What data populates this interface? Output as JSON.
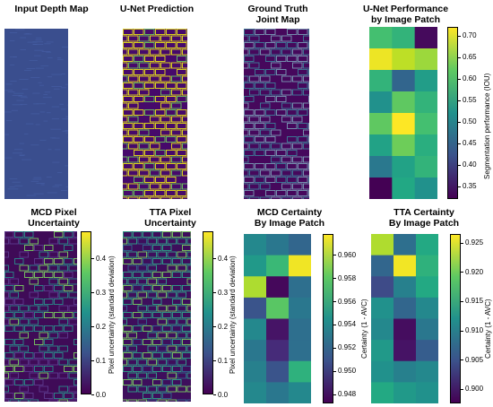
{
  "panels": [
    {
      "id": "depth",
      "title": [
        "Input Depth Map"
      ]
    },
    {
      "id": "unet",
      "title": [
        "U-Net Prediction"
      ]
    },
    {
      "id": "gt",
      "title": [
        "Ground Truth",
        "Joint Map"
      ]
    },
    {
      "id": "unetperf",
      "title": [
        "U-Net Performance",
        "by Image Patch"
      ]
    },
    {
      "id": "mcdpix",
      "title": [
        "MCD Pixel",
        "Uncertainty"
      ]
    },
    {
      "id": "ttapix",
      "title": [
        "TTA Pixel",
        "Uncertainty"
      ]
    },
    {
      "id": "mcdcert",
      "title": [
        "MCD Certainty",
        "By Image Patch"
      ]
    },
    {
      "id": "ttacert",
      "title": [
        "TTA Certainty",
        "By Image Patch"
      ]
    }
  ],
  "colors": {
    "viridis_low": "#440154",
    "viridis_mid": "#21918c",
    "viridis_high": "#fde725",
    "depth_blue": "#3a4e8e"
  },
  "colorbars": [
    {
      "id": "cb-unetperf",
      "label": "Segmentation performance (IOU)",
      "ticks": [
        "0.35",
        "0.40",
        "0.45",
        "0.50",
        "0.55",
        "0.60",
        "0.65",
        "0.70"
      ],
      "range": [
        0.32,
        0.72
      ]
    },
    {
      "id": "cb-mcdpix",
      "label": "Pixel uncertainty (standard deviation)",
      "ticks": [
        "0.0",
        "0.1",
        "0.2",
        "0.3",
        "0.4"
      ],
      "range": [
        0.0,
        0.48
      ]
    },
    {
      "id": "cb-ttapix",
      "label": "Pixel uncertainty (standard deviation)",
      "ticks": [
        "0.0",
        "0.1",
        "0.2",
        "0.3",
        "0.4"
      ],
      "range": [
        0.0,
        0.48
      ]
    },
    {
      "id": "cb-mcdcert",
      "label": "Certainty (1 - AVC)",
      "ticks": [
        "0.948",
        "0.950",
        "0.952",
        "0.954",
        "0.956",
        "0.958",
        "0.960"
      ],
      "range": [
        0.9472,
        0.9618
      ]
    },
    {
      "id": "cb-ttacert",
      "label": "Certainty (1 - AVC)",
      "ticks": [
        "0.900",
        "0.905",
        "0.910",
        "0.915",
        "0.920",
        "0.925"
      ],
      "range": [
        0.8975,
        0.9265
      ]
    }
  ],
  "chart_data": [
    {
      "type": "heatmap",
      "title": "U-Net Performance by Image Patch",
      "colorbar_label": "Segmentation performance (IOU)",
      "colormap": "viridis",
      "rows": 8,
      "cols": 3,
      "values": [
        [
          0.6,
          0.58,
          0.33
        ],
        [
          0.71,
          0.68,
          0.66
        ],
        [
          0.58,
          0.45,
          0.54
        ],
        [
          0.52,
          0.62,
          0.58
        ],
        [
          0.62,
          0.72,
          0.6
        ],
        [
          0.55,
          0.63,
          0.57
        ],
        [
          0.48,
          0.55,
          0.58
        ],
        [
          0.32,
          0.56,
          0.52
        ]
      ]
    },
    {
      "type": "heatmap",
      "title": "MCD Certainty By Image Patch",
      "colorbar_label": "Certainty (1 - AVC)",
      "colormap": "viridis",
      "rows": 8,
      "cols": 3,
      "values": [
        [
          0.954,
          0.953,
          0.952
        ],
        [
          0.955,
          0.957,
          0.9615
        ],
        [
          0.96,
          0.9475,
          0.9525
        ],
        [
          0.951,
          0.958,
          0.953
        ],
        [
          0.954,
          0.948,
          0.9525
        ],
        [
          0.953,
          0.949,
          0.9525
        ],
        [
          0.9535,
          0.951,
          0.9565
        ],
        [
          0.954,
          0.953,
          0.954
        ]
      ]
    },
    {
      "type": "heatmap",
      "title": "TTA Certainty By Image Patch",
      "colorbar_label": "Certainty (1 - AVC)",
      "colormap": "viridis",
      "rows": 8,
      "cols": 3,
      "values": [
        [
          0.923,
          0.908,
          0.915
        ],
        [
          0.907,
          0.926,
          0.916
        ],
        [
          0.904,
          0.91,
          0.915
        ],
        [
          0.912,
          0.907,
          0.911
        ],
        [
          0.911,
          0.8985,
          0.909
        ],
        [
          0.913,
          0.899,
          0.906
        ],
        [
          0.912,
          0.91,
          0.911
        ],
        [
          0.915,
          0.913,
          0.912
        ]
      ]
    }
  ]
}
